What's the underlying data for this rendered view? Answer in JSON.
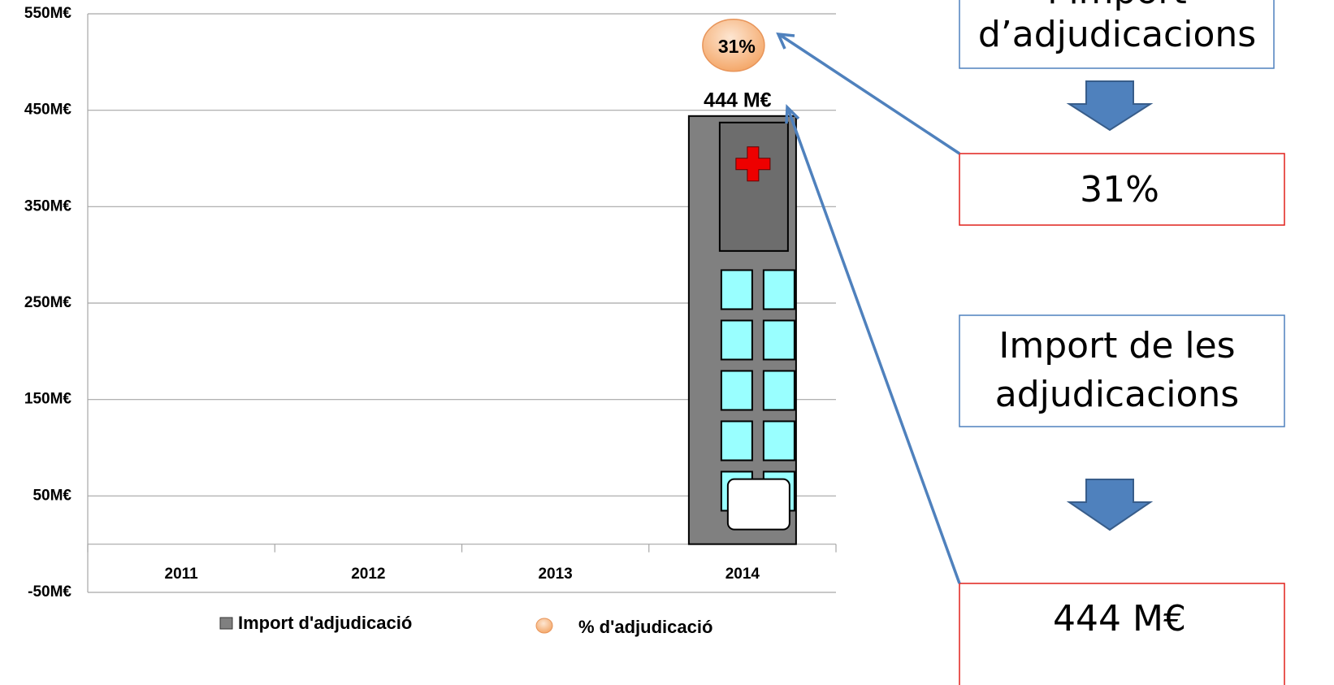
{
  "chart_data": {
    "type": "bar",
    "categories": [
      "2011",
      "2012",
      "2013",
      "2014"
    ],
    "series": [
      {
        "name": "Import d'adjudicació",
        "color": "#808080",
        "values": [
          null,
          null,
          null,
          444
        ],
        "value_labels": [
          null,
          null,
          null,
          "444 M€"
        ]
      },
      {
        "name": "% d'adjudicació",
        "color": "#f7b98a",
        "values": [
          null,
          null,
          null,
          31
        ],
        "value_labels": [
          null,
          null,
          null,
          "31%"
        ]
      }
    ],
    "ylim": [
      -50,
      550
    ],
    "yticks": [
      {
        "value": -50,
        "label": "-50M€"
      },
      {
        "value": 50,
        "label": "50M€"
      },
      {
        "value": 150,
        "label": "150M€"
      },
      {
        "value": 250,
        "label": "250M€"
      },
      {
        "value": 350,
        "label": "350M€"
      },
      {
        "value": 450,
        "label": "450M€"
      },
      {
        "value": 550,
        "label": "550M€"
      }
    ],
    "grid": true,
    "legend": "bottom"
  },
  "annotations": {
    "box1": [
      "l’import",
      "d’adjudicacions"
    ],
    "box2": "31%",
    "box3": [
      "Import de les",
      "adjudicacions"
    ],
    "box4": "444 M€"
  }
}
